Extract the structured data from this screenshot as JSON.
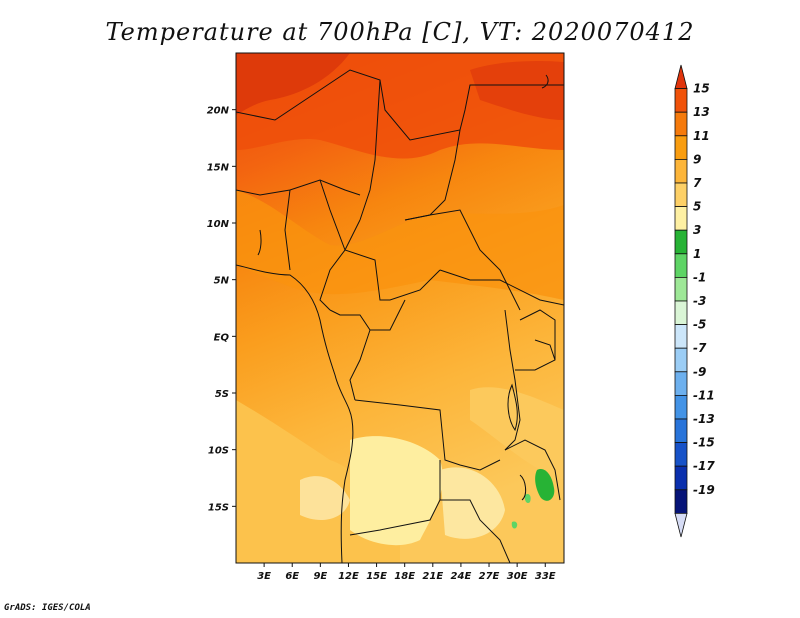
{
  "title": "Temperature at 700hPa [C], VT: 2020070412",
  "credit": "GrADS: IGES/COLA",
  "map": {
    "lon_range": [
      0,
      35
    ],
    "lat_range": [
      -20,
      25
    ],
    "lat_ticks": [
      {
        "value": 20,
        "label": "20N"
      },
      {
        "value": 15,
        "label": "15N"
      },
      {
        "value": 10,
        "label": "10N"
      },
      {
        "value": 5,
        "label": "5N"
      },
      {
        "value": 0,
        "label": "EQ"
      },
      {
        "value": -5,
        "label": "5S"
      },
      {
        "value": -10,
        "label": "10S"
      },
      {
        "value": -15,
        "label": "15S"
      }
    ],
    "lon_ticks": [
      {
        "value": 3,
        "label": "3E"
      },
      {
        "value": 6,
        "label": "6E"
      },
      {
        "value": 9,
        "label": "9E"
      },
      {
        "value": 12,
        "label": "12E"
      },
      {
        "value": 15,
        "label": "15E"
      },
      {
        "value": 18,
        "label": "18E"
      },
      {
        "value": 21,
        "label": "21E"
      },
      {
        "value": 24,
        "label": "24E"
      },
      {
        "value": 27,
        "label": "27E"
      },
      {
        "value": 30,
        "label": "30E"
      },
      {
        "value": 33,
        "label": "33E"
      }
    ]
  },
  "colorbar": {
    "labels": [
      "15",
      "13",
      "11",
      "9",
      "7",
      "5",
      "3",
      "1",
      "-1",
      "-3",
      "-5",
      "-7",
      "-9",
      "-11",
      "-13",
      "-15",
      "-17",
      "-19"
    ],
    "colors": [
      "#e0340c",
      "#f0520a",
      "#f57a0c",
      "#f99d10",
      "#fcb53a",
      "#fdd067",
      "#fef0a3",
      "#27b335",
      "#5ed465",
      "#9ee897",
      "#daf5d6",
      "#cce6fa",
      "#9bcdf5",
      "#6db0ee",
      "#4393e6",
      "#2874da",
      "#1752c8",
      "#0a2fad",
      "#061478",
      "#d6dcf5"
    ]
  }
}
